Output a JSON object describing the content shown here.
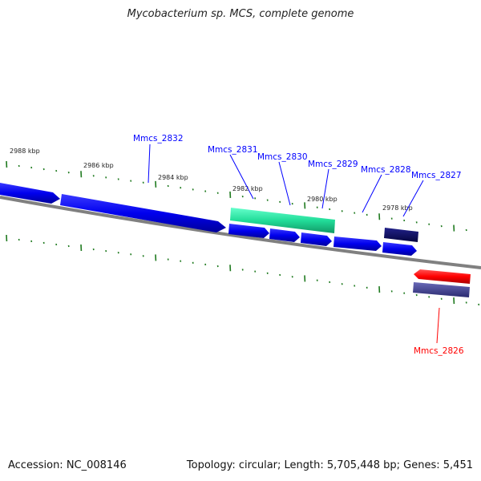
{
  "title": "Mycobacterium sp. MCS, complete genome",
  "footer": {
    "accession": "Accession: NC_008146",
    "topology": "Topology: circular; Length: 5,705,448 bp; Genes: 5,451"
  },
  "kbp_labels": [
    "2988 kbp",
    "2986 kbp",
    "2984 kbp",
    "2982 kbp",
    "2980 kbp",
    "2978 kbp"
  ],
  "genes": [
    {
      "name": "Mmcs_2832",
      "color": "#0000ff"
    },
    {
      "name": "Mmcs_2831",
      "color": "#0000ff"
    },
    {
      "name": "Mmcs_2830",
      "color": "#0000ff"
    },
    {
      "name": "Mmcs_2829",
      "color": "#0000ff"
    },
    {
      "name": "Mmcs_2828",
      "color": "#0000ff"
    },
    {
      "name": "Mmcs_2827",
      "color": "#0000ff"
    },
    {
      "name": "Mmcs_2826",
      "color": "#ff0000"
    }
  ],
  "colors": {
    "forward_cds": "#1010f0",
    "rna_feature": "#33eeaa",
    "dark_feature": "#0b0b66",
    "reverse_cds": "#ff1010",
    "reverse_feature": "#4a4a99",
    "backbone": "#808080",
    "ticks": "#1f7a1f"
  }
}
